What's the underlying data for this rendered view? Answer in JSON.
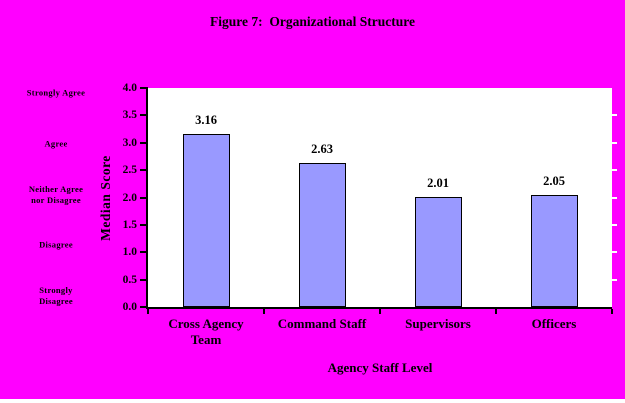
{
  "colors": {
    "background": "#FF00FF",
    "plot_background": "#FFFFFF",
    "bar_fill": "#9999FF",
    "bar_border": "#000000",
    "text": "#000000"
  },
  "chart_data": {
    "type": "bar",
    "title": "Figure 7:  Organizational Structure",
    "categories": [
      "Cross Agency\nTeam",
      "Command Staff",
      "Supervisors",
      "Officers"
    ],
    "values": [
      3.16,
      2.63,
      2.01,
      2.05
    ],
    "data_labels": [
      "3.16",
      "2.63",
      "2.01",
      "2.05"
    ],
    "xlabel": "Agency Staff Level",
    "ylabel": "Median Score",
    "ylim": [
      0.0,
      4.0
    ],
    "ytick_step": 0.5,
    "yticks": [
      "4.0",
      "3.5",
      "3.0",
      "2.5",
      "2.0",
      "1.5",
      "1.0",
      "0.5",
      "0.0"
    ],
    "scale_annotations": [
      {
        "label": "Strongly Agree",
        "value": 4.0
      },
      {
        "label": "Agree",
        "value": 3.0
      },
      {
        "label": "Neither Agree\nnor Disagree",
        "value": 2.0
      },
      {
        "label": "Disagree",
        "value": 1.0
      },
      {
        "label": "Strongly\nDisagree",
        "value": 0.0
      }
    ],
    "legend": false,
    "grid": false
  }
}
